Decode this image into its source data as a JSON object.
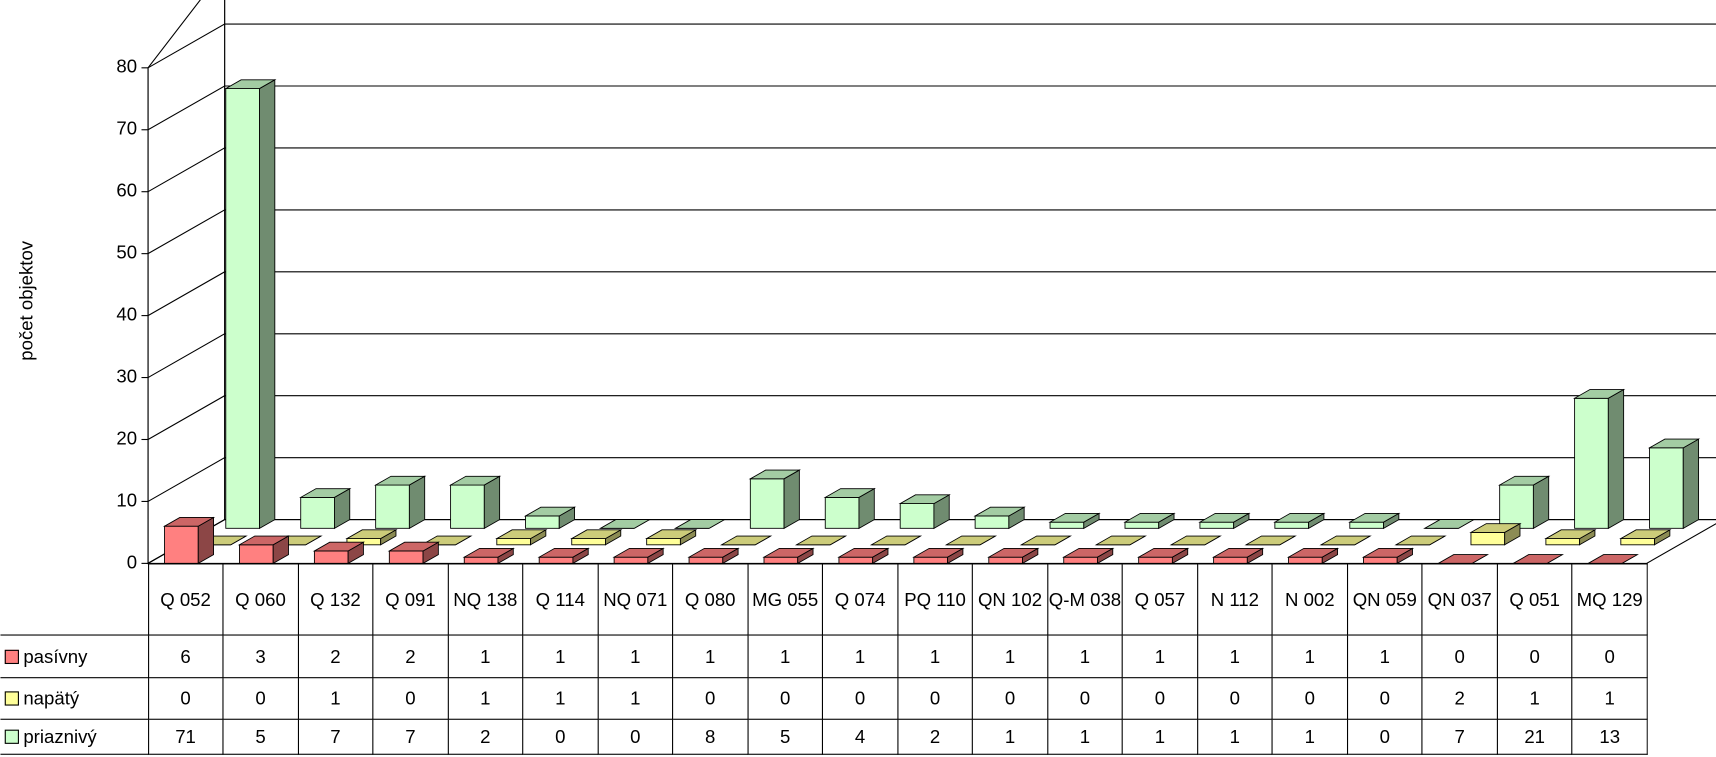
{
  "chart_data": {
    "type": "bar3d",
    "y_label": "počet objektov",
    "categories": [
      "Q 052",
      "Q 060",
      "Q 132",
      "Q 091",
      "NQ 138",
      "Q 114",
      "NQ 071",
      "Q 080",
      "MG 055",
      "Q 074",
      "PQ 110",
      "QN 102",
      "Q-M 038",
      "Q 057",
      "N 112",
      "N 002",
      "QN 059",
      "QN 037",
      "Q 051",
      "MQ 129"
    ],
    "series": [
      {
        "name": "pasívny",
        "color": "#ff8080",
        "values": [
          6,
          3,
          2,
          2,
          1,
          1,
          1,
          1,
          1,
          1,
          1,
          1,
          1,
          1,
          1,
          1,
          1,
          0,
          0,
          0
        ]
      },
      {
        "name": "napätý",
        "color": "#ffff99",
        "values": [
          0,
          0,
          1,
          0,
          1,
          1,
          1,
          0,
          0,
          0,
          0,
          0,
          0,
          0,
          0,
          0,
          0,
          2,
          1,
          1
        ]
      },
      {
        "name": "priaznivý",
        "color": "#ccffcc",
        "values": [
          71,
          5,
          7,
          7,
          2,
          0,
          0,
          8,
          5,
          4,
          2,
          1,
          1,
          1,
          1,
          1,
          0,
          7,
          21,
          13
        ]
      }
    ],
    "ylim": [
      0,
      80
    ],
    "yticks": [
      0,
      10,
      20,
      30,
      40,
      50,
      60,
      70,
      80
    ],
    "grid": true,
    "data_table": true
  }
}
